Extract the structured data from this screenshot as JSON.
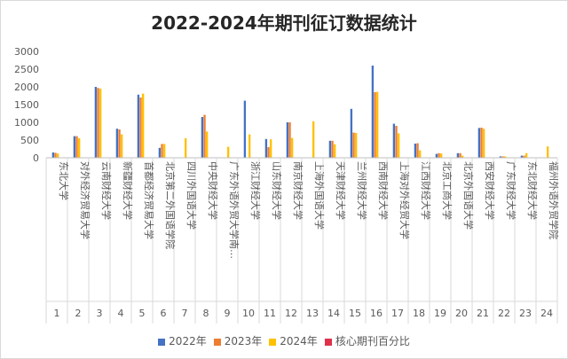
{
  "chart_data": {
    "type": "bar",
    "title": "2022-2024年期刊征订数据统计",
    "ylim": [
      0,
      3000
    ],
    "yticks": [
      0,
      500,
      1000,
      1500,
      2000,
      2500,
      3000
    ],
    "grid": false,
    "legend_position": "bottom",
    "categories": [
      {
        "num": "1",
        "name": "东北大学"
      },
      {
        "num": "2",
        "name": "对外经济贸易大学"
      },
      {
        "num": "3",
        "name": "云南财经大学"
      },
      {
        "num": "4",
        "name": "新疆财经大学"
      },
      {
        "num": "5",
        "name": "首都经济贸易大学"
      },
      {
        "num": "6",
        "name": "北京第二外国语学院"
      },
      {
        "num": "7",
        "name": "四川外国语大学"
      },
      {
        "num": "8",
        "name": "中央财经大学"
      },
      {
        "num": "9",
        "name": "广东外语外贸大学南…"
      },
      {
        "num": "10",
        "name": "浙江财经大学"
      },
      {
        "num": "11",
        "name": "山东财经大学"
      },
      {
        "num": "12",
        "name": "南京财经大学"
      },
      {
        "num": "13",
        "name": "上海外国语大学"
      },
      {
        "num": "14",
        "name": "天津财经大学"
      },
      {
        "num": "15",
        "name": "兰州财经大学"
      },
      {
        "num": "16",
        "name": "西南财经大学"
      },
      {
        "num": "17",
        "name": "上海对外经贸大学"
      },
      {
        "num": "18",
        "name": "江西财经大学"
      },
      {
        "num": "19",
        "name": "北京工商大学"
      },
      {
        "num": "20",
        "name": "北京外国语大学"
      },
      {
        "num": "21",
        "name": "西安财经大学"
      },
      {
        "num": "22",
        "name": "广东财经大学"
      },
      {
        "num": "23",
        "name": "东北财经大学"
      },
      {
        "num": "24",
        "name": "福州外语外贸学院"
      }
    ],
    "series": [
      {
        "name": "2022年",
        "color": "#4472C4",
        "values": [
          150,
          610,
          2000,
          820,
          1780,
          280,
          0,
          1150,
          0,
          1610,
          530,
          1000,
          0,
          480,
          1380,
          2600,
          960,
          400,
          110,
          130,
          840,
          40,
          60,
          0
        ]
      },
      {
        "name": "2023年",
        "color": "#ED7D31",
        "values": [
          140,
          610,
          1970,
          800,
          1700,
          390,
          0,
          1210,
          0,
          0,
          300,
          1000,
          0,
          480,
          710,
          1850,
          900,
          410,
          130,
          130,
          850,
          40,
          60,
          0
        ]
      },
      {
        "name": "2024年",
        "color": "#FFC000",
        "values": [
          120,
          550,
          1950,
          660,
          1810,
          390,
          550,
          740,
          310,
          660,
          520,
          560,
          1030,
          380,
          700,
          1860,
          690,
          210,
          120,
          60,
          820,
          40,
          130,
          320
        ]
      },
      {
        "name": "核心期刊百分比",
        "color": "#E0304A",
        "values": [
          1,
          2,
          2,
          2,
          2,
          2,
          1,
          2,
          1,
          2,
          2,
          2,
          2,
          2,
          2,
          2,
          2,
          2,
          1,
          2,
          2,
          1,
          1,
          1
        ]
      }
    ]
  }
}
